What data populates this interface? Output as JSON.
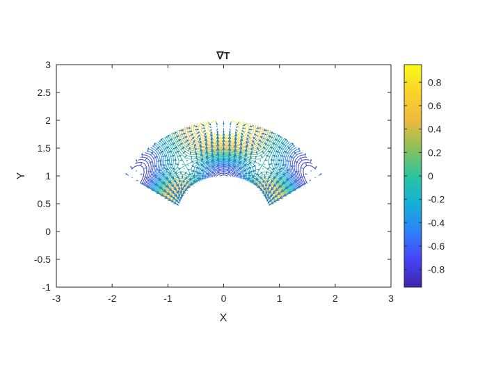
{
  "chart_data": {
    "type": "contour-quiver",
    "title": "∇T",
    "xlabel": "X",
    "ylabel": "Y",
    "xlim": [
      -3,
      3
    ],
    "ylim": [
      -1,
      3
    ],
    "xticks": [
      "-3",
      "-2",
      "-1",
      "0",
      "1",
      "2",
      "3"
    ],
    "yticks": [
      "-1",
      "-0.5",
      "0",
      "0.5",
      "1",
      "1.5",
      "2",
      "2.5",
      "3"
    ],
    "grid": false,
    "domain": {
      "shape": "annular-sector",
      "center": [
        0,
        0
      ],
      "r_inner": 1.0,
      "r_outer": 2.0,
      "theta_deg": [
        30,
        150
      ]
    },
    "colorbar": {
      "location": "right",
      "range": [
        -0.95,
        0.95
      ],
      "ticks": [
        "0.8",
        "0.6",
        "0.4",
        "0.2",
        "0",
        "-0.2",
        "-0.4",
        "-0.6",
        "-0.8"
      ],
      "colormap": "parula",
      "colors": [
        "#3e26a8",
        "#4743f8",
        "#2d82fa",
        "#12b1d6",
        "#2cc49e",
        "#8ac05a",
        "#f0b93c",
        "#f9d32b",
        "#f9fb15"
      ]
    },
    "quiver_color": "#2a7fbf"
  }
}
